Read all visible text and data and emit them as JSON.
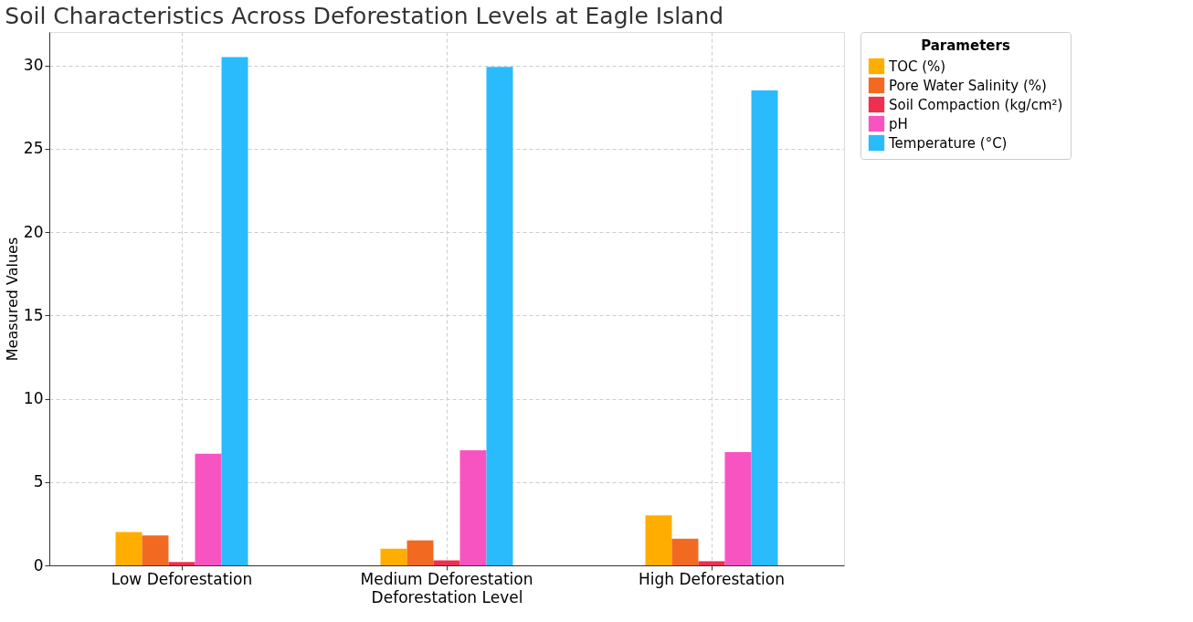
{
  "chart_data": {
    "type": "bar",
    "title": "Soil Characteristics Across Deforestation Levels at Eagle Island",
    "xlabel": "Deforestation Level",
    "ylabel": "Measured Values",
    "legend_title": "Parameters",
    "categories": [
      "Low Deforestation",
      "Medium Deforestation",
      "High Deforestation"
    ],
    "series": [
      {
        "name": "TOC (%)",
        "color": "#ffae00",
        "values": [
          2.0,
          1.0,
          3.0
        ]
      },
      {
        "name": "Pore Water Salinity (%)",
        "color": "#f26a21",
        "values": [
          1.8,
          1.5,
          1.6
        ]
      },
      {
        "name": "Soil Compaction (kg/cm²)",
        "color": "#ee2f50",
        "values": [
          0.2,
          0.3,
          0.25
        ]
      },
      {
        "name": "pH",
        "color": "#f754c2",
        "values": [
          6.7,
          6.9,
          6.8
        ]
      },
      {
        "name": "Temperature (°C)",
        "color": "#29bbfb",
        "values": [
          30.5,
          29.9,
          28.5
        ]
      }
    ],
    "ylim": [
      0,
      32
    ],
    "yticks": [
      0,
      5,
      10,
      15,
      20,
      25,
      30
    ],
    "grid": true,
    "legend": "top right"
  }
}
